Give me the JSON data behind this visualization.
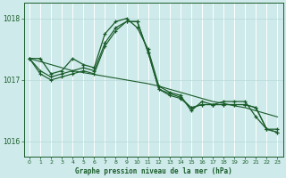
{
  "bg_color": "#ceeaea",
  "grid_color": "#b0d0d0",
  "line_color": "#1a5c2a",
  "title": "Graphe pression niveau de la mer (hPa)",
  "ylim": [
    1015.75,
    1018.25
  ],
  "yticks": [
    1016,
    1017,
    1018
  ],
  "xlim": [
    -0.5,
    23.5
  ],
  "xticks": [
    0,
    1,
    2,
    3,
    4,
    5,
    6,
    7,
    8,
    9,
    10,
    11,
    12,
    13,
    14,
    15,
    16,
    17,
    18,
    19,
    20,
    21,
    22,
    23
  ],
  "series_jagged": [
    1017.35,
    1017.35,
    1017.1,
    1017.15,
    1017.35,
    1017.25,
    1017.2,
    1017.75,
    1017.95,
    1018.0,
    1017.85,
    1017.5,
    1016.9,
    1016.8,
    1016.75,
    1016.5,
    1016.65,
    1016.6,
    1016.65,
    1016.65,
    1016.65,
    1016.4,
    1016.2,
    1016.2
  ],
  "series_smooth1": [
    1017.35,
    1017.1,
    1017.0,
    1017.05,
    1017.1,
    1017.15,
    1017.1,
    1017.55,
    1017.8,
    1017.95,
    1017.95,
    1017.45,
    1016.85,
    1016.75,
    1016.7,
    1016.55,
    1016.6,
    1016.6,
    1016.6,
    1016.6,
    1016.6,
    1016.55,
    1016.2,
    1016.15
  ],
  "series_smooth2": [
    1017.35,
    1017.15,
    1017.05,
    1017.1,
    1017.15,
    1017.2,
    1017.15,
    1017.6,
    1017.85,
    1017.95,
    1017.95,
    1017.45,
    1016.85,
    1016.78,
    1016.72,
    1016.55,
    1016.6,
    1016.6,
    1016.6,
    1016.6,
    1016.6,
    1016.55,
    1016.2,
    1016.15
  ],
  "series_diagonal": [
    1017.35,
    1017.3,
    1017.25,
    1017.2,
    1017.15,
    1017.12,
    1017.09,
    1017.06,
    1017.03,
    1017.0,
    1016.97,
    1016.94,
    1016.9,
    1016.85,
    1016.8,
    1016.75,
    1016.7,
    1016.65,
    1016.62,
    1016.58,
    1016.55,
    1016.5,
    1016.45,
    1016.4
  ]
}
